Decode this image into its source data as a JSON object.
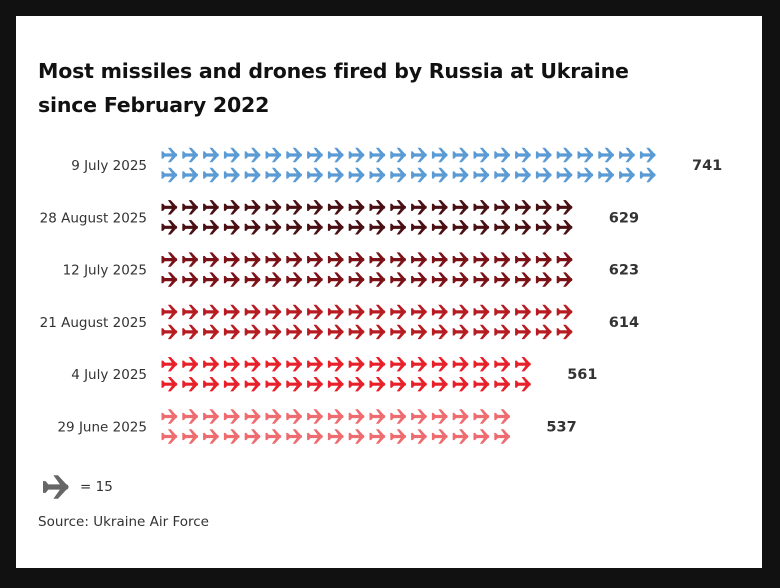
{
  "chart_data": {
    "type": "bar",
    "title": "Most missiles and drones fired by Russia at Ukraine since February 2022",
    "orientation": "horizontal",
    "unit_icon": "plane-icon",
    "icon_value": 15,
    "categories": [
      "9 July 2025",
      "28 August 2025",
      "12 July 2025",
      "21 August 2025",
      "4 July 2025",
      "29 June 2025"
    ],
    "values": [
      741,
      629,
      623,
      614,
      561,
      537
    ],
    "colors": [
      "#5b9bd5",
      "#4a0f12",
      "#7a1218",
      "#b71c23",
      "#e8202a",
      "#ee6b6f"
    ],
    "legend": {
      "icon": "plane-icon",
      "text": "= 15"
    },
    "source": "Source: Ukraine Air Force"
  }
}
